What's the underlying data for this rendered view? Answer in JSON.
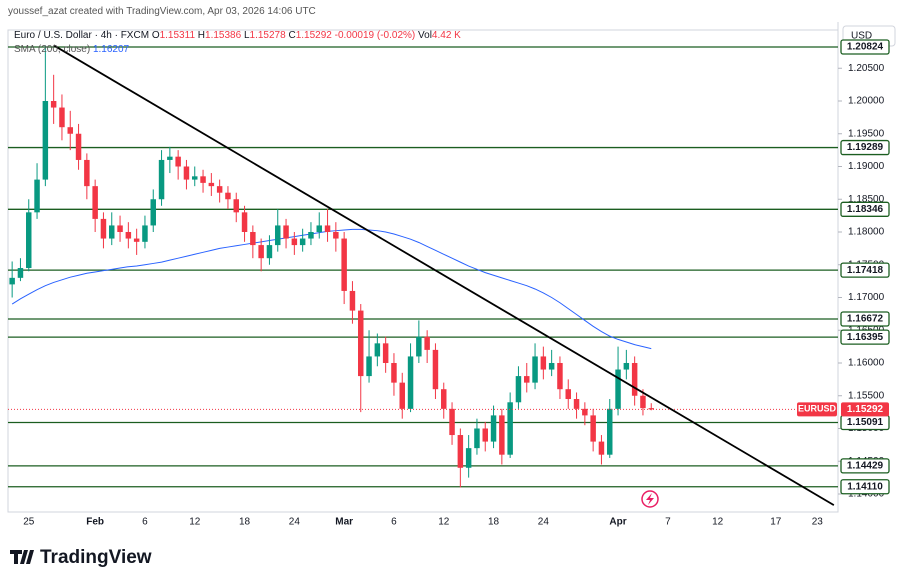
{
  "header": {
    "attribution": "youssef_azat created with TradingView.com, Apr 03, 2026 14:06 UTC"
  },
  "chart_data": {
    "type": "candlestick",
    "symbol": "Euro / U.S. Dollar · 4h · FXCM",
    "ohlc_legend": [
      {
        "label": "O",
        "value": "1.15311"
      },
      {
        "label": "H",
        "value": "1.15386"
      },
      {
        "label": "L",
        "value": "1.15278"
      },
      {
        "label": "C",
        "value": "1.15292"
      }
    ],
    "change": "-0.00019 (-0.02%)",
    "volume": {
      "label": "Vol",
      "value": "4.42 K"
    },
    "currency": "USD",
    "categories": [
      null,
      null,
      "25",
      null,
      null,
      null,
      null,
      null,
      null,
      null,
      "Feb",
      null,
      null,
      null,
      null,
      null,
      "6",
      null,
      null,
      null,
      null,
      null,
      "12",
      null,
      null,
      null,
      null,
      null,
      "18",
      null,
      null,
      null,
      null,
      null,
      "24",
      null,
      null,
      null,
      null,
      null,
      "Mar",
      null,
      null,
      null,
      null,
      null,
      "6",
      null,
      null,
      null,
      null,
      null,
      "12",
      null,
      null,
      null,
      null,
      null,
      "18",
      null,
      null,
      null,
      null,
      null,
      "24",
      null,
      null,
      null,
      null,
      null,
      null,
      null,
      null,
      "Apr",
      null,
      null,
      null,
      null,
      null,
      "7",
      null,
      null,
      null,
      null,
      null,
      "12",
      null,
      null,
      null,
      null,
      null,
      null,
      "17",
      null,
      null,
      null,
      null,
      "23",
      null,
      null
    ],
    "open": [
      1.172,
      1.173,
      1.1745,
      1.183,
      1.188,
      1.2,
      1.199,
      1.196,
      1.195,
      1.191,
      1.187,
      1.182,
      1.179,
      1.181,
      1.18,
      1.179,
      1.1785,
      1.181,
      1.185,
      1.191,
      1.1915,
      1.19,
      1.188,
      1.1885,
      1.1875,
      1.187,
      1.186,
      1.185,
      1.183,
      1.18,
      1.178,
      1.176,
      1.178,
      1.181,
      1.179,
      1.178,
      1.179,
      1.18,
      1.181,
      1.18,
      1.179,
      1.171,
      1.168,
      1.158,
      1.161,
      1.163,
      1.16,
      1.157,
      1.153,
      1.161,
      1.164,
      1.162,
      1.156,
      1.153,
      1.149,
      1.144,
      1.147,
      1.15,
      1.148,
      1.152,
      1.146,
      1.154,
      1.158,
      1.157,
      1.161,
      1.159,
      1.16,
      1.156,
      1.1545,
      1.153,
      1.152,
      1.148,
      1.146,
      1.153,
      1.159,
      1.16,
      1.155,
      1.15311,
      null,
      null,
      null,
      null,
      null,
      null,
      null,
      null,
      null,
      null,
      null,
      null,
      null,
      null,
      null,
      null,
      null,
      null,
      null,
      null,
      null,
      null
    ],
    "high": [
      1.1755,
      1.176,
      1.185,
      1.1905,
      1.2085,
      1.204,
      1.201,
      1.1985,
      1.1965,
      1.192,
      1.188,
      1.183,
      1.183,
      1.1825,
      1.1815,
      1.1805,
      1.1825,
      1.1865,
      1.1925,
      1.193,
      1.1925,
      1.191,
      1.19,
      1.1895,
      1.189,
      1.188,
      1.187,
      1.186,
      1.184,
      1.181,
      1.179,
      1.1795,
      1.1835,
      1.182,
      1.18,
      1.1805,
      1.1815,
      1.183,
      1.1835,
      1.1815,
      1.18,
      1.1725,
      1.169,
      1.165,
      1.1645,
      1.164,
      1.1615,
      1.1585,
      1.163,
      1.1665,
      1.165,
      1.163,
      1.157,
      1.154,
      1.15,
      1.149,
      1.1515,
      1.151,
      1.1535,
      1.153,
      1.1555,
      1.1595,
      1.16,
      1.163,
      1.1625,
      1.162,
      1.161,
      1.1575,
      1.1555,
      1.154,
      1.153,
      1.149,
      1.1545,
      1.1625,
      1.162,
      1.161,
      1.156,
      1.15386,
      null,
      null,
      null,
      null,
      null,
      null,
      null,
      null,
      null,
      null,
      null,
      null,
      null,
      null,
      null,
      null,
      null,
      null,
      null,
      null,
      null,
      null
    ],
    "low": [
      1.17,
      1.1725,
      1.174,
      1.182,
      1.187,
      1.1965,
      1.194,
      1.1925,
      1.1895,
      1.185,
      1.18,
      1.1775,
      1.178,
      1.1785,
      1.1775,
      1.1765,
      1.1775,
      1.18,
      1.184,
      1.189,
      1.188,
      1.1865,
      1.187,
      1.186,
      1.1855,
      1.1845,
      1.1835,
      1.1815,
      1.1785,
      1.176,
      1.174,
      1.175,
      1.177,
      1.1775,
      1.1765,
      1.177,
      1.178,
      1.179,
      1.1785,
      1.177,
      1.169,
      1.166,
      1.1525,
      1.157,
      1.1595,
      1.1585,
      1.155,
      1.1515,
      1.1525,
      1.16,
      1.16,
      1.1545,
      1.1515,
      1.1475,
      1.141,
      1.1425,
      1.146,
      1.1465,
      1.147,
      1.1445,
      1.1455,
      1.153,
      1.1555,
      1.156,
      1.1575,
      1.158,
      1.1545,
      1.153,
      1.1515,
      1.1505,
      1.1465,
      1.1445,
      1.1455,
      1.152,
      1.1575,
      1.1535,
      1.152,
      1.15278,
      null,
      null,
      null,
      null,
      null,
      null,
      null,
      null,
      null,
      null,
      null,
      null,
      null,
      null,
      null,
      null,
      null,
      null,
      null,
      null,
      null,
      null
    ],
    "close": [
      1.173,
      1.1745,
      1.183,
      1.188,
      1.2,
      1.199,
      1.196,
      1.195,
      1.191,
      1.187,
      1.182,
      1.179,
      1.181,
      1.18,
      1.179,
      1.1785,
      1.181,
      1.185,
      1.191,
      1.1915,
      1.19,
      1.188,
      1.1885,
      1.1875,
      1.187,
      1.186,
      1.185,
      1.183,
      1.18,
      1.178,
      1.176,
      1.178,
      1.181,
      1.179,
      1.178,
      1.179,
      1.18,
      1.181,
      1.18,
      1.179,
      1.171,
      1.168,
      1.158,
      1.161,
      1.163,
      1.16,
      1.157,
      1.153,
      1.161,
      1.164,
      1.162,
      1.156,
      1.153,
      1.149,
      1.144,
      1.147,
      1.15,
      1.148,
      1.152,
      1.146,
      1.154,
      1.158,
      1.157,
      1.161,
      1.159,
      1.16,
      1.156,
      1.1545,
      1.153,
      1.152,
      1.148,
      1.146,
      1.153,
      1.159,
      1.16,
      1.155,
      1.15311,
      1.15292,
      null,
      null,
      null,
      null,
      null,
      null,
      null,
      null,
      null,
      null,
      null,
      null,
      null,
      null,
      null,
      null,
      null,
      null,
      null,
      null,
      null,
      null
    ],
    "up_color": "#089981",
    "down_color": "#f23645",
    "indicator": {
      "name": "SMA (200, close)",
      "value_label": "1.16207",
      "color": "#2962ff",
      "values": [
        1.169,
        1.1698,
        1.1705,
        1.1712,
        1.1718,
        1.1723,
        1.1727,
        1.1731,
        1.1734,
        1.1737,
        1.1739,
        1.1741,
        1.1743,
        1.1745,
        1.1747,
        1.1748,
        1.175,
        1.1752,
        1.1754,
        1.1757,
        1.176,
        1.1763,
        1.1766,
        1.1769,
        1.1772,
        1.1775,
        1.1777,
        1.1779,
        1.1781,
        1.1783,
        1.1785,
        1.1787,
        1.1789,
        1.1791,
        1.1793,
        1.1795,
        1.1797,
        1.1799,
        1.1801,
        1.1802,
        1.1803,
        1.1804,
        1.1804,
        1.1803,
        1.1802,
        1.18,
        1.1797,
        1.1793,
        1.1789,
        1.1784,
        1.1778,
        1.1772,
        1.1766,
        1.176,
        1.1754,
        1.1748,
        1.1743,
        1.1738,
        1.1734,
        1.173,
        1.1726,
        1.1722,
        1.1718,
        1.1713,
        1.1707,
        1.17,
        1.1692,
        1.1683,
        1.1674,
        1.1665,
        1.1656,
        1.1648,
        1.1641,
        1.1636,
        1.1632,
        1.1628,
        1.1625,
        1.1622,
        null,
        null,
        null,
        null,
        null,
        null,
        null,
        null,
        null,
        null,
        null,
        null,
        null,
        null,
        null,
        null,
        null,
        null,
        null,
        null,
        null,
        null
      ]
    },
    "levels": {
      "color": "#1b5e20",
      "values": [
        1.20824,
        1.19289,
        1.18346,
        1.17418,
        1.16672,
        1.16395,
        1.15091,
        1.14429,
        {
          "value": 1.1411,
          "label": "1.14110"
        }
      ]
    },
    "trendline": {
      "color": "#000000",
      "points": [
        [
          5,
          1.2085
        ],
        [
          99,
          1.1383
        ]
      ]
    },
    "last_price": 1.15292,
    "last_price_tag": "EURUSD",
    "last_price_color": "#f23645",
    "ylim": [
      1.13725,
      1.21084
    ],
    "yticks": [
      {
        "value": 1.14,
        "label": "1.14000"
      },
      {
        "value": 1.145,
        "label": "1.14500"
      },
      {
        "value": 1.15,
        "label": "1.15000"
      },
      {
        "value": 1.155,
        "label": "1.15500"
      },
      {
        "value": 1.16,
        "label": "1.16000"
      },
      {
        "value": 1.165,
        "label": "1.16500"
      },
      {
        "value": 1.17,
        "label": "1.17000"
      },
      {
        "value": 1.175,
        "label": "1.17500"
      },
      {
        "value": 1.18,
        "label": "1.18000"
      },
      {
        "value": 1.185,
        "label": "1.18500"
      },
      {
        "value": 1.19,
        "label": "1.19000"
      },
      {
        "value": 1.195,
        "label": "1.19500"
      },
      {
        "value": 1.2,
        "label": "1.20000"
      },
      {
        "value": 1.205,
        "label": "1.20500"
      }
    ]
  },
  "footer": {
    "logo": "TradingView"
  }
}
